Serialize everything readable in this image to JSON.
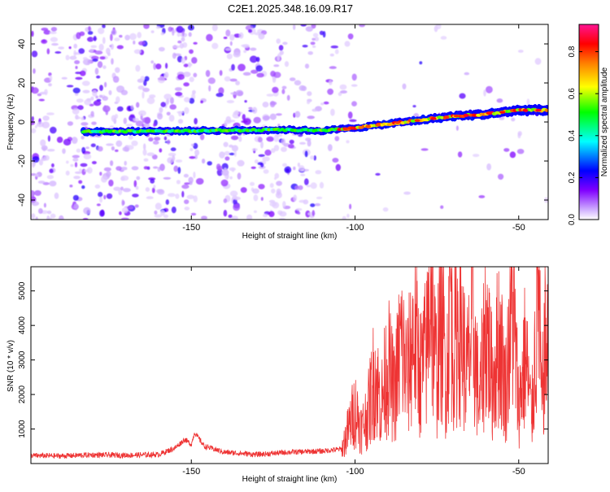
{
  "page": {
    "title": "C2E1.2025.348.16.09.R17"
  },
  "chart_data": [
    {
      "type": "heatmap",
      "name": "spectrogram",
      "xlabel": "Height of straight line (km)",
      "ylabel": "Frequency (Hz)",
      "xlim": [
        -199,
        -41
      ],
      "ylim": [
        -50,
        50
      ],
      "xticks": [
        -150,
        -100,
        -50
      ],
      "yticks": [
        -40,
        -20,
        0,
        20,
        40
      ],
      "colorbar": {
        "label": "Normalized spectral amplitude",
        "range": [
          0,
          0.93
        ],
        "ticks": [
          0.0,
          0.2,
          0.4,
          0.6,
          0.8
        ],
        "stops": [
          "#ffffff",
          "#8000ff",
          "#0000ff",
          "#00ffff",
          "#00ff00",
          "#ffff00",
          "#ff8000",
          "#ff0000",
          "#ff1493"
        ]
      },
      "ridge": {
        "x": [
          -183,
          -120,
          -110,
          -100,
          -90,
          -80,
          -70,
          -60,
          -50,
          -42
        ],
        "y": [
          -5,
          -4,
          -4.5,
          -3,
          -1,
          1,
          3,
          4,
          6,
          6
        ],
        "peak_amplitude": 0.93
      }
    },
    {
      "type": "line",
      "name": "snr",
      "xlabel": "Height of straight line (km)",
      "ylabel": "SNR (10 * v/v)",
      "xlim": [
        -199,
        -41
      ],
      "ylim": [
        0,
        5700
      ],
      "xticks": [
        -150,
        -100,
        -50
      ],
      "yticks": [
        1000,
        2000,
        3000,
        4000,
        5000
      ],
      "series": [
        {
          "name": "SNR",
          "color": "#ee3333",
          "x": [
            -199,
            -190,
            -180,
            -170,
            -160,
            -155,
            -152,
            -150,
            -149,
            -146,
            -140,
            -130,
            -120,
            -110,
            -104,
            -102,
            -100,
            -98,
            -96,
            -94,
            -92,
            -90,
            -88,
            -86,
            -84,
            -82,
            -80,
            -78,
            -77,
            -76,
            -75,
            -74,
            -72,
            -71,
            -70,
            -68,
            -66,
            -64,
            -62,
            -60,
            -58,
            -56,
            -54,
            -52,
            -50,
            -48,
            -46,
            -44,
            -43,
            -42,
            -41
          ],
          "y": [
            230,
            220,
            250,
            240,
            260,
            450,
            700,
            550,
            900,
            500,
            330,
            260,
            330,
            360,
            420,
            1000,
            1600,
            1000,
            1500,
            2600,
            1700,
            2900,
            2000,
            3500,
            2500,
            3900,
            2600,
            3300,
            5700,
            3500,
            2600,
            4600,
            2400,
            5400,
            3300,
            4300,
            2500,
            3900,
            1700,
            4100,
            2300,
            3700,
            2100,
            4900,
            1600,
            3200,
            1300,
            5200,
            1600,
            3400,
            3000
          ]
        }
      ]
    }
  ]
}
